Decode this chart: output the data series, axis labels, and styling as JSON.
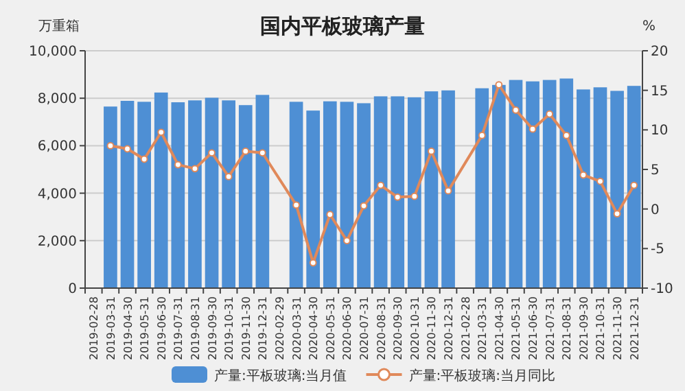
{
  "chart_data": {
    "type": "bar",
    "title": "国内平板玻璃产量",
    "ylabel": "万重箱",
    "y2label": "%",
    "categories": [
      "2019-02-28",
      "2019-03-31",
      "2019-04-30",
      "2019-05-31",
      "2019-06-30",
      "2019-07-31",
      "2019-08-31",
      "2019-09-30",
      "2019-10-31",
      "2019-11-30",
      "2019-12-31",
      "2020-02-29",
      "2020-03-31",
      "2020-04-30",
      "2020-05-31",
      "2020-06-30",
      "2020-07-31",
      "2020-08-31",
      "2020-09-30",
      "2020-10-31",
      "2020-11-30",
      "2020-12-31",
      "2021-02-28",
      "2021-03-31",
      "2021-04-30",
      "2021-05-31",
      "2021-06-30",
      "2021-07-31",
      "2021-08-31",
      "2021-09-30",
      "2021-10-31",
      "2021-11-30",
      "2021-12-31"
    ],
    "series": [
      {
        "name": "产量:平板玻璃:当月值",
        "color": "#4e8fd4",
        "values": [
          null,
          7650,
          7890,
          7850,
          8240,
          7830,
          7910,
          8020,
          7910,
          7710,
          8140,
          null,
          7850,
          7480,
          7870,
          7850,
          7790,
          8080,
          8080,
          8040,
          8290,
          8330,
          null,
          8420,
          8560,
          8770,
          8710,
          8770,
          8830,
          8370,
          8460,
          8310,
          8520
        ]
      },
      {
        "name": "产量:平板玻璃:当月同比",
        "type": "line",
        "axis": "y2",
        "color": "#e0895a",
        "marker": "circle",
        "values": [
          null,
          8.0,
          7.6,
          6.3,
          9.7,
          5.6,
          5.1,
          7.1,
          4.1,
          7.3,
          7.1,
          null,
          0.5,
          -6.8,
          -0.7,
          -4.0,
          0.4,
          3.0,
          1.5,
          1.6,
          7.3,
          2.3,
          null,
          9.3,
          15.7,
          12.5,
          10.1,
          12.0,
          9.3,
          4.3,
          3.5,
          -0.6,
          3.0
        ]
      }
    ],
    "ylim": [
      0,
      10000
    ],
    "yticks": [
      0,
      {
        "value": 2000,
        "label": "2,000"
      },
      {
        "value": 4000,
        "label": "4,000"
      },
      {
        "value": 6000,
        "label": "6,000"
      },
      {
        "value": 8000,
        "label": "8,000"
      },
      {
        "value": 10000,
        "label": "10,000"
      }
    ],
    "y2lim": [
      -10,
      20
    ],
    "y2ticks": [
      -10,
      -5,
      0,
      5,
      10,
      15,
      20
    ],
    "grid": "y",
    "legend": "bottom"
  }
}
